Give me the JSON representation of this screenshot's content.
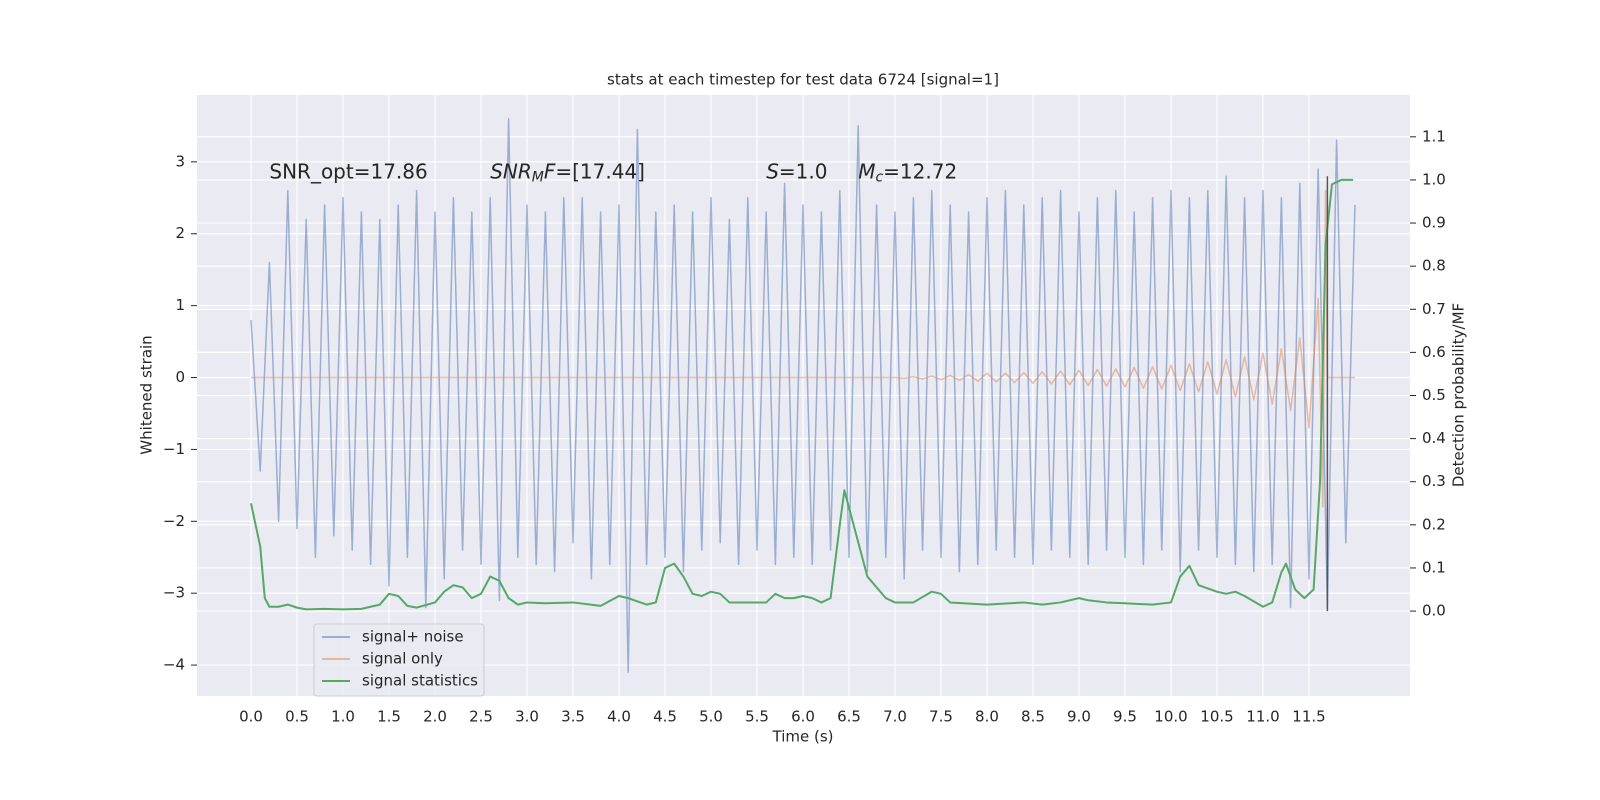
{
  "chart_data": {
    "type": "line",
    "title": "stats at each timestep for test data 6724 [signal=1]",
    "xlabel": "Time (s)",
    "ylabel": "Whitened strain",
    "y2label": "Detection probability/MF",
    "xlim": [
      -0.587,
      12.598
    ],
    "ylim": [
      -4.43,
      3.93
    ],
    "y2lim": [
      -0.197,
      1.197
    ],
    "xticks": [
      {
        "value": 0,
        "label": "0.0"
      },
      {
        "value": 0.5,
        "label": "0.5"
      },
      {
        "value": 1,
        "label": "1.0"
      },
      {
        "value": 1.5,
        "label": "1.5"
      },
      {
        "value": 2,
        "label": "2.0"
      },
      {
        "value": 2.5,
        "label": "2.5"
      },
      {
        "value": 3,
        "label": "3.0"
      },
      {
        "value": 3.5,
        "label": "3.5"
      },
      {
        "value": 4,
        "label": "4.0"
      },
      {
        "value": 4.5,
        "label": "4.5"
      },
      {
        "value": 5,
        "label": "5.0"
      },
      {
        "value": 5.5,
        "label": "5.5"
      },
      {
        "value": 6,
        "label": "6.0"
      },
      {
        "value": 6.5,
        "label": "6.5"
      },
      {
        "value": 7,
        "label": "7.0"
      },
      {
        "value": 7.5,
        "label": "7.5"
      },
      {
        "value": 8,
        "label": "8.0"
      },
      {
        "value": 8.5,
        "label": "8.5"
      },
      {
        "value": 9,
        "label": "9.0"
      },
      {
        "value": 9.5,
        "label": "9.5"
      },
      {
        "value": 10,
        "label": "10.0"
      },
      {
        "value": 10.5,
        "label": "10.5"
      },
      {
        "value": 11,
        "label": "11.0"
      },
      {
        "value": 11.5,
        "label": "11.5"
      }
    ],
    "yticks": [
      {
        "value": -4,
        "label": "−4"
      },
      {
        "value": -3,
        "label": "−3"
      },
      {
        "value": -2,
        "label": "−2"
      },
      {
        "value": -1,
        "label": "−1"
      },
      0,
      1,
      2,
      3
    ],
    "y2ticks": [
      {
        "value": 0,
        "label": "0.0"
      },
      {
        "value": 0.1,
        "label": "0.1"
      },
      {
        "value": 0.2,
        "label": "0.2"
      },
      {
        "value": 0.3,
        "label": "0.3"
      },
      {
        "value": 0.4,
        "label": "0.4"
      },
      {
        "value": 0.5,
        "label": "0.5"
      },
      {
        "value": 0.6,
        "label": "0.6"
      },
      {
        "value": 0.7,
        "label": "0.7"
      },
      {
        "value": 0.8,
        "label": "0.8"
      },
      {
        "value": 0.9,
        "label": "0.9"
      },
      {
        "value": 1,
        "label": "1.0"
      },
      {
        "value": 1.1,
        "label": "1.1"
      }
    ],
    "grid": true,
    "legend": "lower left",
    "series": [
      {
        "name": "signal+ noise",
        "color": "#4c72b0",
        "alpha": 0.5,
        "x": [
          0.0,
          0.1,
          0.2,
          0.3,
          0.4,
          0.5,
          0.6,
          0.7,
          0.8,
          0.9,
          1.0,
          1.1,
          1.2,
          1.3,
          1.4,
          1.5,
          1.6,
          1.7,
          1.8,
          1.9,
          2.0,
          2.1,
          2.2,
          2.3,
          2.4,
          2.5,
          2.6,
          2.7,
          2.8,
          2.9,
          3.0,
          3.1,
          3.2,
          3.3,
          3.4,
          3.5,
          3.6,
          3.7,
          3.8,
          3.9,
          4.0,
          4.1,
          4.2,
          4.3,
          4.4,
          4.5,
          4.6,
          4.7,
          4.8,
          4.9,
          5.0,
          5.1,
          5.2,
          5.3,
          5.4,
          5.5,
          5.6,
          5.7,
          5.8,
          5.9,
          6.0,
          6.1,
          6.2,
          6.3,
          6.4,
          6.5,
          6.6,
          6.7,
          6.8,
          6.9,
          7.0,
          7.1,
          7.2,
          7.3,
          7.4,
          7.5,
          7.6,
          7.7,
          7.8,
          7.9,
          8.0,
          8.1,
          8.2,
          8.3,
          8.4,
          8.5,
          8.6,
          8.7,
          8.8,
          8.9,
          9.0,
          9.1,
          9.2,
          9.3,
          9.4,
          9.5,
          9.6,
          9.7,
          9.8,
          9.9,
          10.0,
          10.1,
          10.2,
          10.3,
          10.4,
          10.5,
          10.6,
          10.7,
          10.8,
          10.9,
          11.0,
          11.1,
          11.2,
          11.3,
          11.4,
          11.5,
          11.6,
          11.7,
          11.8,
          11.9,
          12.0
        ],
        "values": [
          0.8,
          -1.3,
          1.6,
          -2.0,
          2.6,
          -2.1,
          2.2,
          -2.5,
          2.4,
          -2.2,
          2.5,
          -2.4,
          2.3,
          -2.6,
          2.2,
          -2.9,
          2.4,
          -2.5,
          2.6,
          -3.2,
          2.3,
          -2.8,
          2.5,
          -2.4,
          2.3,
          -2.6,
          2.5,
          -3.1,
          3.6,
          -2.5,
          2.4,
          -2.6,
          2.3,
          -2.7,
          2.5,
          -2.3,
          2.5,
          -2.8,
          2.3,
          -2.6,
          2.4,
          -4.1,
          3.45,
          -2.6,
          2.3,
          -2.5,
          2.4,
          -2.7,
          2.3,
          -2.4,
          2.5,
          -2.3,
          2.2,
          -2.6,
          2.5,
          -2.4,
          2.3,
          -2.6,
          2.7,
          -2.5,
          2.4,
          -2.6,
          2.3,
          -2.4,
          2.6,
          -2.5,
          3.5,
          -2.7,
          2.4,
          -2.5,
          2.3,
          -2.8,
          2.5,
          -2.4,
          2.6,
          -2.5,
          2.4,
          -2.7,
          2.3,
          -2.6,
          2.5,
          -2.4,
          2.6,
          -2.5,
          2.4,
          -2.6,
          2.5,
          -2.4,
          2.6,
          -2.5,
          2.3,
          -2.6,
          2.5,
          -2.4,
          2.6,
          -2.5,
          2.3,
          -2.6,
          2.5,
          -2.4,
          2.6,
          -2.7,
          2.5,
          -2.4,
          2.6,
          -2.5,
          2.8,
          -2.6,
          2.5,
          -2.7,
          2.6,
          -2.6,
          2.5,
          -3.2,
          2.7,
          -2.8,
          2.9,
          -3.2,
          3.3,
          -2.3,
          2.4
        ]
      },
      {
        "name": "signal only",
        "color": "#dd8452",
        "alpha": 0.5,
        "x": [
          0,
          7.0,
          7.1,
          7.2,
          7.3,
          7.4,
          7.5,
          7.6,
          7.7,
          7.8,
          7.9,
          8.0,
          8.1,
          8.2,
          8.3,
          8.4,
          8.5,
          8.6,
          8.7,
          8.8,
          8.9,
          9.0,
          9.1,
          9.2,
          9.3,
          9.4,
          9.5,
          9.6,
          9.7,
          9.8,
          9.9,
          10.0,
          10.1,
          10.2,
          10.3,
          10.4,
          10.5,
          10.6,
          10.7,
          10.8,
          10.9,
          11.0,
          11.1,
          11.2,
          11.3,
          11.4,
          11.5,
          11.6,
          11.65,
          11.68,
          11.7,
          12.0
        ],
        "values": [
          0,
          0,
          -0.01,
          0.01,
          -0.02,
          0.02,
          -0.03,
          0.03,
          -0.04,
          0.04,
          -0.05,
          0.06,
          -0.06,
          0.06,
          -0.07,
          0.07,
          -0.08,
          0.08,
          -0.09,
          0.09,
          -0.1,
          0.1,
          -0.11,
          0.11,
          -0.12,
          0.12,
          -0.13,
          0.14,
          -0.15,
          0.15,
          -0.16,
          0.17,
          -0.18,
          0.19,
          -0.2,
          0.22,
          -0.23,
          0.25,
          -0.27,
          0.29,
          -0.31,
          0.34,
          -0.37,
          0.4,
          -0.46,
          0.55,
          -0.7,
          1.1,
          -1.8,
          2.6,
          0,
          0
        ]
      },
      {
        "name": "signal statistics",
        "color": "#55a868",
        "alpha": 1,
        "axis": "y2",
        "x": [
          0.0,
          0.1,
          0.15,
          0.2,
          0.3,
          0.4,
          0.5,
          0.6,
          0.8,
          1.0,
          1.2,
          1.4,
          1.5,
          1.6,
          1.7,
          1.8,
          2.0,
          2.1,
          2.2,
          2.3,
          2.4,
          2.5,
          2.6,
          2.7,
          2.8,
          2.9,
          3.0,
          3.2,
          3.5,
          3.8,
          4.0,
          4.1,
          4.3,
          4.4,
          4.5,
          4.6,
          4.7,
          4.8,
          4.9,
          5.0,
          5.1,
          5.2,
          5.4,
          5.6,
          5.7,
          5.8,
          5.9,
          6.0,
          6.1,
          6.2,
          6.3,
          6.4,
          6.45,
          6.55,
          6.7,
          6.9,
          7.0,
          7.2,
          7.4,
          7.5,
          7.6,
          8.0,
          8.4,
          8.6,
          8.8,
          9.0,
          9.1,
          9.3,
          9.5,
          9.8,
          10.0,
          10.1,
          10.2,
          10.3,
          10.5,
          10.6,
          10.7,
          10.8,
          11.0,
          11.1,
          11.2,
          11.25,
          11.35,
          11.45,
          11.55,
          11.62,
          11.68,
          11.75,
          11.85,
          11.98
        ],
        "values": [
          0.25,
          0.15,
          0.03,
          0.01,
          0.01,
          0.015,
          0.008,
          0.004,
          0.005,
          0.004,
          0.005,
          0.015,
          0.04,
          0.035,
          0.012,
          0.008,
          0.02,
          0.045,
          0.06,
          0.055,
          0.03,
          0.04,
          0.08,
          0.07,
          0.03,
          0.015,
          0.02,
          0.018,
          0.02,
          0.012,
          0.035,
          0.03,
          0.015,
          0.02,
          0.1,
          0.11,
          0.08,
          0.04,
          0.035,
          0.045,
          0.04,
          0.02,
          0.02,
          0.02,
          0.04,
          0.03,
          0.03,
          0.035,
          0.03,
          0.02,
          0.03,
          0.2,
          0.28,
          0.2,
          0.08,
          0.03,
          0.02,
          0.02,
          0.045,
          0.04,
          0.02,
          0.015,
          0.02,
          0.015,
          0.02,
          0.03,
          0.025,
          0.02,
          0.018,
          0.015,
          0.02,
          0.08,
          0.105,
          0.06,
          0.045,
          0.04,
          0.045,
          0.035,
          0.01,
          0.02,
          0.09,
          0.11,
          0.05,
          0.03,
          0.05,
          0.3,
          0.85,
          0.99,
          1.0,
          1.0
        ]
      }
    ],
    "vlines": [
      {
        "x": 11.7,
        "ymin": -3.25,
        "ymax": 2.8,
        "color": "#555555"
      }
    ],
    "annotations": [
      {
        "x": 0.2,
        "y": 2.85,
        "parts": [
          {
            "text": "SNR_opt=17.86"
          }
        ]
      },
      {
        "x": 2.6,
        "y": 2.85,
        "parts": [
          {
            "text": "SNR",
            "italic": true
          },
          {
            "text": "M",
            "italic": true,
            "sub": true
          },
          {
            "text": "F",
            "italic": true
          },
          {
            "text": "=[17.44]"
          }
        ]
      },
      {
        "x": 5.6,
        "y": 2.85,
        "parts": [
          {
            "text": "S",
            "italic": true
          },
          {
            "text": "=1.0"
          }
        ]
      },
      {
        "x": 6.6,
        "y": 2.85,
        "parts": [
          {
            "text": "M",
            "italic": true
          },
          {
            "text": "c",
            "italic": true,
            "sub": true
          },
          {
            "text": "=12.72"
          }
        ]
      }
    ]
  }
}
